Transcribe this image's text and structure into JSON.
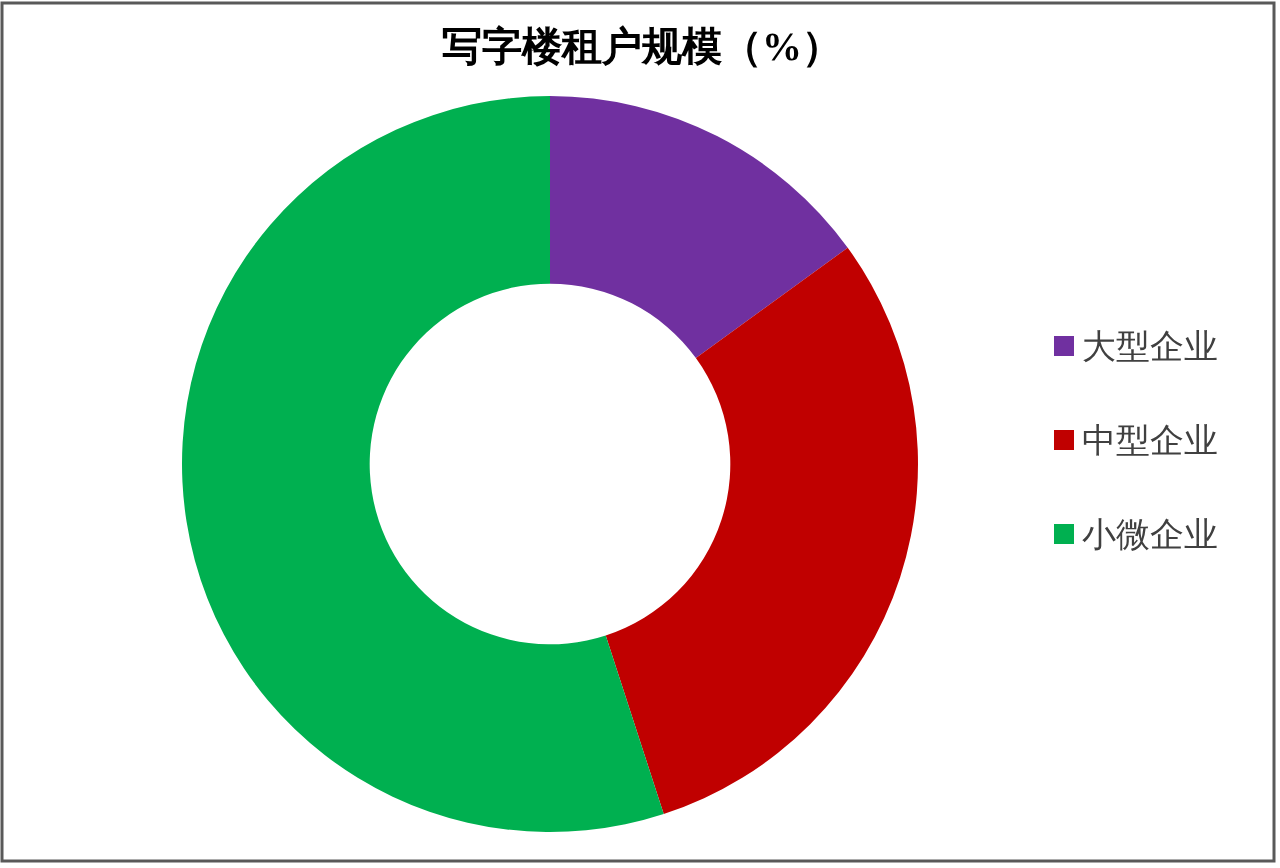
{
  "chart_data": {
    "type": "donut",
    "title": "写字楼租户规模（%）",
    "categories": [
      "大型企业",
      "中型企业",
      "小微企业"
    ],
    "values": [
      15,
      30,
      55
    ],
    "colors": [
      "#7030a0",
      "#c00000",
      "#00b050"
    ],
    "legend": "right"
  }
}
